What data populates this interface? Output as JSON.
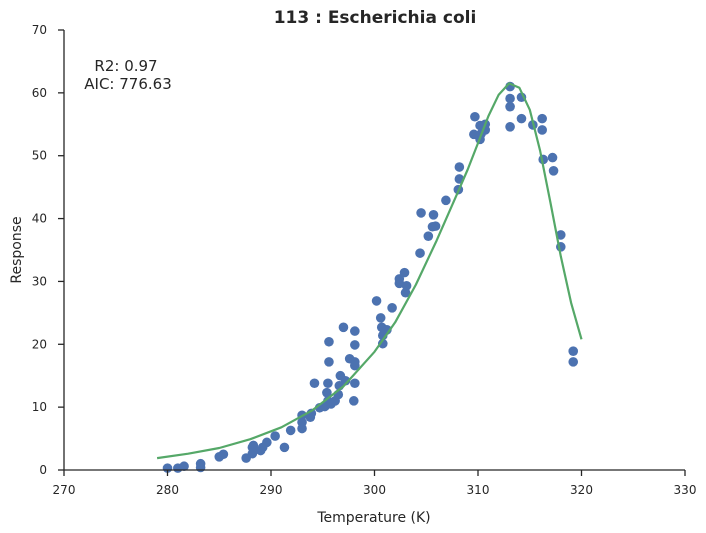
{
  "chart_data": {
    "type": "scatter",
    "title": "113 : Escherichia coli",
    "xlabel": "Temperature (K)",
    "ylabel": "Response",
    "xlim": [
      270,
      330
    ],
    "ylim": [
      0,
      70
    ],
    "xticks": [
      270,
      280,
      290,
      300,
      310,
      320,
      330
    ],
    "yticks": [
      0,
      10,
      20,
      30,
      40,
      50,
      60,
      70
    ],
    "grid": false,
    "annotations": [
      "R2: 0.97",
      "AIC: 776.63"
    ],
    "colors": {
      "points": "#4c72b0",
      "fit": "#55a868",
      "axis": "#262626"
    },
    "series": [
      {
        "kind": "points",
        "points": [
          [
            280.0,
            0.3
          ],
          [
            281.0,
            0.3
          ],
          [
            281.6,
            0.6
          ],
          [
            283.2,
            0.4
          ],
          [
            283.2,
            1.0
          ],
          [
            285.0,
            2.1
          ],
          [
            285.4,
            2.5
          ],
          [
            287.6,
            1.9
          ],
          [
            288.2,
            2.6
          ],
          [
            288.2,
            3.6
          ],
          [
            288.3,
            3.9
          ],
          [
            289.0,
            3.1
          ],
          [
            289.2,
            3.6
          ],
          [
            289.6,
            4.4
          ],
          [
            290.4,
            5.4
          ],
          [
            291.3,
            3.6
          ],
          [
            291.9,
            6.3
          ],
          [
            293.0,
            6.6
          ],
          [
            293.0,
            7.6
          ],
          [
            293.0,
            8.7
          ],
          [
            293.8,
            8.4
          ],
          [
            293.9,
            9.0
          ],
          [
            294.2,
            13.8
          ],
          [
            294.7,
            9.9
          ],
          [
            295.2,
            10.1
          ],
          [
            295.4,
            12.3
          ],
          [
            295.5,
            11.0
          ],
          [
            295.5,
            13.8
          ],
          [
            295.6,
            17.2
          ],
          [
            295.6,
            20.4
          ],
          [
            295.8,
            10.5
          ],
          [
            296.2,
            11.0
          ],
          [
            296.5,
            12.0
          ],
          [
            296.6,
            13.4
          ],
          [
            296.7,
            15.0
          ],
          [
            297.0,
            22.7
          ],
          [
            297.2,
            14.2
          ],
          [
            297.6,
            17.7
          ],
          [
            298.0,
            11.0
          ],
          [
            298.1,
            13.8
          ],
          [
            298.1,
            16.6
          ],
          [
            298.1,
            17.2
          ],
          [
            298.1,
            19.9
          ],
          [
            298.1,
            22.1
          ],
          [
            300.2,
            26.9
          ],
          [
            300.6,
            24.2
          ],
          [
            300.7,
            22.7
          ],
          [
            300.8,
            21.4
          ],
          [
            300.8,
            20.1
          ],
          [
            301.2,
            22.3
          ],
          [
            301.7,
            25.8
          ],
          [
            302.4,
            29.7
          ],
          [
            302.4,
            30.4
          ],
          [
            302.9,
            31.4
          ],
          [
            303.0,
            28.2
          ],
          [
            303.1,
            29.3
          ],
          [
            304.4,
            34.5
          ],
          [
            304.5,
            40.9
          ],
          [
            305.2,
            37.2
          ],
          [
            305.6,
            38.7
          ],
          [
            305.7,
            40.6
          ],
          [
            305.9,
            38.8
          ],
          [
            306.9,
            42.9
          ],
          [
            308.1,
            44.6
          ],
          [
            308.2,
            48.2
          ],
          [
            308.2,
            46.3
          ],
          [
            309.6,
            53.4
          ],
          [
            309.7,
            56.2
          ],
          [
            310.2,
            54.8
          ],
          [
            310.2,
            52.6
          ],
          [
            310.3,
            53.5
          ],
          [
            310.7,
            54.1
          ],
          [
            310.7,
            55.0
          ],
          [
            313.1,
            61.0
          ],
          [
            313.1,
            59.1
          ],
          [
            313.1,
            57.8
          ],
          [
            313.1,
            54.6
          ],
          [
            314.2,
            59.3
          ],
          [
            314.2,
            55.9
          ],
          [
            315.3,
            54.9
          ],
          [
            316.2,
            55.9
          ],
          [
            316.2,
            54.1
          ],
          [
            316.3,
            49.4
          ],
          [
            317.2,
            49.7
          ],
          [
            317.3,
            47.6
          ],
          [
            318.0,
            37.4
          ],
          [
            318.0,
            35.5
          ],
          [
            319.2,
            18.9
          ],
          [
            319.2,
            17.2
          ]
        ]
      },
      {
        "kind": "fit-line",
        "points": [
          [
            279,
            1.9
          ],
          [
            282,
            2.6
          ],
          [
            285,
            3.5
          ],
          [
            288,
            4.9
          ],
          [
            291,
            6.8
          ],
          [
            294,
            9.5
          ],
          [
            297,
            13.3
          ],
          [
            300,
            18.8
          ],
          [
            302,
            23.5
          ],
          [
            304,
            29.5
          ],
          [
            306,
            36.5
          ],
          [
            308,
            44.0
          ],
          [
            309,
            47.8
          ],
          [
            310,
            52.0
          ],
          [
            311,
            56.3
          ],
          [
            312,
            59.7
          ],
          [
            313,
            61.5
          ],
          [
            314,
            60.8
          ],
          [
            315,
            57.3
          ],
          [
            316,
            50.8
          ],
          [
            317,
            42.5
          ],
          [
            318,
            34.0
          ],
          [
            319,
            26.6
          ],
          [
            320,
            20.8
          ]
        ]
      }
    ]
  }
}
